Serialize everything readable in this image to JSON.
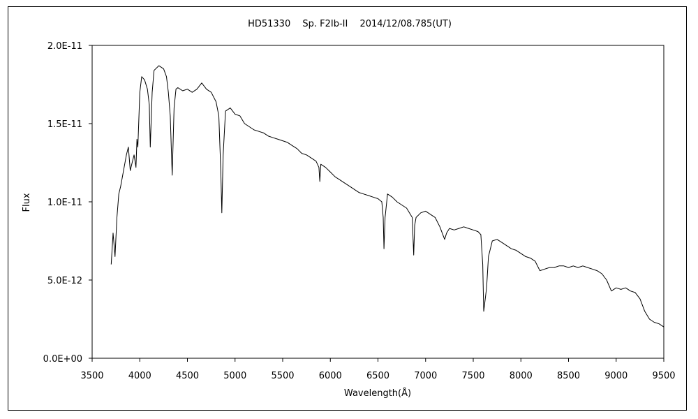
{
  "chart_data": {
    "type": "line",
    "title": "HD51330　 Sp. F2Ib-II　 2014/12/08.785(UT)",
    "xlabel": "Wavelength(Å)",
    "ylabel": "Flux",
    "xlim": [
      3500,
      9500
    ],
    "ylim": [
      0,
      2e-11
    ],
    "x_ticks": [
      3500,
      4000,
      4500,
      5000,
      5500,
      6000,
      6500,
      7000,
      7500,
      8000,
      8500,
      9000,
      9500
    ],
    "x_tick_labels": [
      "3500",
      "4000",
      "4500",
      "5000",
      "5500",
      "6000",
      "6500",
      "7000",
      "7500",
      "8000",
      "8500",
      "9000",
      "9500"
    ],
    "y_ticks": [
      0,
      5e-12,
      1e-11,
      1.5e-11,
      2e-11
    ],
    "y_tick_labels": [
      "0.0E+00",
      "5.0E-12",
      "1.0E-11",
      "1.5E-11",
      "2.0E-11"
    ],
    "grid": false,
    "series": [
      {
        "color": "#000000",
        "x": [
          3700,
          3720,
          3740,
          3760,
          3780,
          3800,
          3830,
          3860,
          3880,
          3900,
          3920,
          3940,
          3960,
          3970,
          3980,
          4000,
          4020,
          4050,
          4080,
          4100,
          4110,
          4130,
          4150,
          4200,
          4250,
          4280,
          4300,
          4320,
          4340,
          4360,
          4380,
          4400,
          4450,
          4500,
          4550,
          4600,
          4650,
          4700,
          4750,
          4800,
          4830,
          4850,
          4861,
          4875,
          4900,
          4950,
          5000,
          5050,
          5100,
          5150,
          5200,
          5250,
          5300,
          5350,
          5400,
          5450,
          5500,
          5550,
          5600,
          5650,
          5700,
          5750,
          5800,
          5850,
          5880,
          5890,
          5900,
          5950,
          6000,
          6050,
          6100,
          6150,
          6200,
          6250,
          6300,
          6350,
          6400,
          6450,
          6500,
          6540,
          6555,
          6563,
          6575,
          6600,
          6650,
          6700,
          6750,
          6800,
          6860,
          6875,
          6885,
          6900,
          6950,
          7000,
          7050,
          7100,
          7150,
          7200,
          7220,
          7250,
          7300,
          7350,
          7400,
          7450,
          7500,
          7550,
          7580,
          7600,
          7610,
          7620,
          7640,
          7660,
          7700,
          7750,
          7800,
          7850,
          7900,
          7950,
          8000,
          8050,
          8100,
          8150,
          8200,
          8250,
          8300,
          8350,
          8400,
          8450,
          8500,
          8550,
          8600,
          8650,
          8700,
          8750,
          8800,
          8850,
          8900,
          8950,
          9000,
          9050,
          9100,
          9150,
          9200,
          9250,
          9300,
          9350,
          9400,
          9450,
          9500
        ],
        "y": [
          6e-12,
          8e-12,
          6.5e-12,
          9e-12,
          1.05e-11,
          1.1e-11,
          1.2e-11,
          1.3e-11,
          1.35e-11,
          1.2e-11,
          1.25e-11,
          1.3e-11,
          1.22e-11,
          1.4e-11,
          1.35e-11,
          1.7e-11,
          1.8e-11,
          1.78e-11,
          1.72e-11,
          1.62e-11,
          1.35e-11,
          1.7e-11,
          1.84e-11,
          1.87e-11,
          1.85e-11,
          1.8e-11,
          1.7e-11,
          1.55e-11,
          1.17e-11,
          1.6e-11,
          1.72e-11,
          1.73e-11,
          1.71e-11,
          1.72e-11,
          1.7e-11,
          1.72e-11,
          1.76e-11,
          1.72e-11,
          1.7e-11,
          1.64e-11,
          1.55e-11,
          1.2e-11,
          9.3e-12,
          1.3e-11,
          1.58e-11,
          1.6e-11,
          1.56e-11,
          1.55e-11,
          1.5e-11,
          1.48e-11,
          1.46e-11,
          1.45e-11,
          1.44e-11,
          1.42e-11,
          1.41e-11,
          1.4e-11,
          1.39e-11,
          1.38e-11,
          1.36e-11,
          1.34e-11,
          1.31e-11,
          1.3e-11,
          1.28e-11,
          1.26e-11,
          1.22e-11,
          1.13e-11,
          1.24e-11,
          1.22e-11,
          1.19e-11,
          1.16e-11,
          1.14e-11,
          1.12e-11,
          1.1e-11,
          1.08e-11,
          1.06e-11,
          1.05e-11,
          1.04e-11,
          1.03e-11,
          1.02e-11,
          1e-11,
          9e-12,
          7e-12,
          9e-12,
          1.05e-11,
          1.03e-11,
          1e-11,
          9.8e-12,
          9.6e-12,
          9e-12,
          6.6e-12,
          8.5e-12,
          9e-12,
          9.3e-12,
          9.4e-12,
          9.2e-12,
          9e-12,
          8.4e-12,
          7.6e-12,
          8e-12,
          8.3e-12,
          8.2e-12,
          8.3e-12,
          8.4e-12,
          8.3e-12,
          8.2e-12,
          8.1e-12,
          7.9e-12,
          6e-12,
          3e-12,
          3.5e-12,
          4.5e-12,
          6.5e-12,
          7.5e-12,
          7.6e-12,
          7.4e-12,
          7.2e-12,
          7e-12,
          6.9e-12,
          6.7e-12,
          6.5e-12,
          6.4e-12,
          6.2e-12,
          5.6e-12,
          5.7e-12,
          5.8e-12,
          5.8e-12,
          5.9e-12,
          5.9e-12,
          5.8e-12,
          5.9e-12,
          5.8e-12,
          5.9e-12,
          5.8e-12,
          5.7e-12,
          5.6e-12,
          5.4e-12,
          5e-12,
          4.3e-12,
          4.5e-12,
          4.4e-12,
          4.5e-12,
          4.3e-12,
          4.2e-12,
          3.8e-12,
          3e-12,
          2.5e-12,
          2.3e-12,
          2.2e-12,
          2e-12
        ]
      }
    ]
  }
}
